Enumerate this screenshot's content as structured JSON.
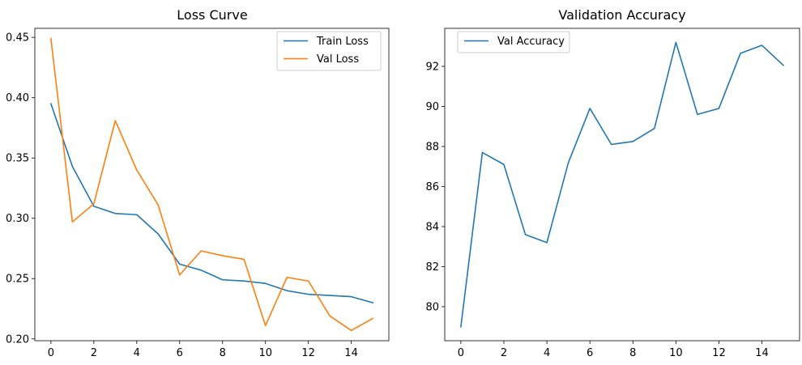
{
  "chart_data": [
    {
      "type": "line",
      "title": "Loss Curve",
      "xlabel": "",
      "ylabel": "",
      "xlim": [
        -0.75,
        15.75
      ],
      "ylim": [
        0.1985,
        0.4575
      ],
      "xticks": [
        0,
        2,
        4,
        6,
        8,
        10,
        12,
        14
      ],
      "yticks": [
        0.2,
        0.25,
        0.3,
        0.35,
        0.4,
        0.45
      ],
      "ytick_labels": [
        "0.20",
        "0.25",
        "0.30",
        "0.35",
        "0.40",
        "0.45"
      ],
      "grid": false,
      "legend_placement": "top-right",
      "x": [
        0,
        1,
        2,
        3,
        4,
        5,
        6,
        7,
        8,
        9,
        10,
        11,
        12,
        13,
        14,
        15
      ],
      "series": [
        {
          "name": "Train Loss",
          "color": "#1f77b4",
          "values": [
            0.395,
            0.343,
            0.31,
            0.304,
            0.303,
            0.287,
            0.262,
            0.257,
            0.249,
            0.248,
            0.246,
            0.24,
            0.237,
            0.236,
            0.235,
            0.23
          ]
        },
        {
          "name": "Val Loss",
          "color": "#ff7f0e",
          "values": [
            0.449,
            0.297,
            0.312,
            0.381,
            0.34,
            0.311,
            0.253,
            0.273,
            0.269,
            0.266,
            0.211,
            0.251,
            0.248,
            0.219,
            0.207,
            0.217
          ]
        }
      ]
    },
    {
      "type": "line",
      "title": "Validation Accuracy",
      "xlabel": "",
      "ylabel": "",
      "xlim": [
        -0.75,
        15.75
      ],
      "ylim": [
        78.3,
        93.9
      ],
      "xticks": [
        0,
        2,
        4,
        6,
        8,
        10,
        12,
        14
      ],
      "yticks": [
        80,
        82,
        84,
        86,
        88,
        90,
        92
      ],
      "ytick_labels": [
        "80",
        "82",
        "84",
        "86",
        "88",
        "90",
        "92"
      ],
      "grid": false,
      "legend_placement": "top-left",
      "x": [
        0,
        1,
        2,
        3,
        4,
        5,
        6,
        7,
        8,
        9,
        10,
        11,
        12,
        13,
        14,
        15
      ],
      "series": [
        {
          "name": "Val Accuracy",
          "color": "#1f77b4",
          "values": [
            79.0,
            87.7,
            87.1,
            83.6,
            83.2,
            87.2,
            89.9,
            88.1,
            88.25,
            88.9,
            93.2,
            89.6,
            89.9,
            92.65,
            93.05,
            92.05
          ]
        }
      ]
    }
  ]
}
